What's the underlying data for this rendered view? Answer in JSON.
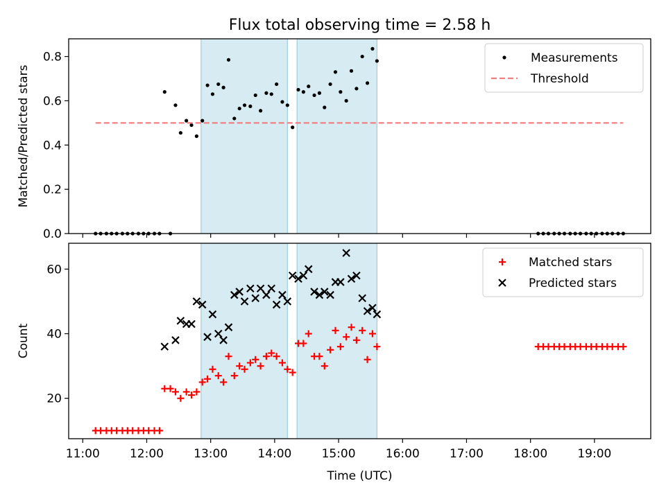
{
  "figure": {
    "title": "Flux total observing time = 2.58 h",
    "xlabel": "Time (UTC)",
    "x_tick_labels": [
      "11:00",
      "12:00",
      "13:00",
      "14:00",
      "15:00",
      "16:00",
      "17:00",
      "18:00",
      "19:00"
    ]
  },
  "chart_data": [
    {
      "type": "scatter",
      "title": "Flux total observing time = 2.58 h",
      "xlabel": "",
      "ylabel": "Matched/Predicted stars",
      "xlim": [
        10.78,
        19.88
      ],
      "ylim": [
        0.0,
        0.88
      ],
      "x_unit": "hours UTC",
      "y_ticks": [
        0.0,
        0.2,
        0.4,
        0.6,
        0.8
      ],
      "y_tick_labels": [
        "0.0",
        "0.2",
        "0.4",
        "0.6",
        "0.8"
      ],
      "shaded_intervals": [
        [
          12.85,
          14.2
        ],
        [
          14.35,
          15.6
        ]
      ],
      "shade_color": "#add8e6",
      "legend": {
        "position": "top-right",
        "entries": [
          "Measurements",
          "Threshold"
        ]
      },
      "series": [
        {
          "name": "Measurements",
          "marker": "dot",
          "color": "#000000",
          "points": [
            [
              11.2,
              0.0
            ],
            [
              11.28,
              0.0
            ],
            [
              11.37,
              0.0
            ],
            [
              11.45,
              0.0
            ],
            [
              11.53,
              0.0
            ],
            [
              11.62,
              0.0
            ],
            [
              11.7,
              0.0
            ],
            [
              11.78,
              0.0
            ],
            [
              11.87,
              0.0
            ],
            [
              11.95,
              0.0
            ],
            [
              12.03,
              0.0
            ],
            [
              12.12,
              0.0
            ],
            [
              12.2,
              0.0
            ],
            [
              12.37,
              0.0
            ],
            [
              12.28,
              0.64
            ],
            [
              12.45,
              0.58
            ],
            [
              12.53,
              0.455
            ],
            [
              12.62,
              0.51
            ],
            [
              12.7,
              0.49
            ],
            [
              12.78,
              0.44
            ],
            [
              12.87,
              0.51
            ],
            [
              12.95,
              0.67
            ],
            [
              13.03,
              0.63
            ],
            [
              13.12,
              0.675
            ],
            [
              13.2,
              0.66
            ],
            [
              13.28,
              0.785
            ],
            [
              13.37,
              0.52
            ],
            [
              13.45,
              0.565
            ],
            [
              13.53,
              0.58
            ],
            [
              13.62,
              0.575
            ],
            [
              13.7,
              0.625
            ],
            [
              13.78,
              0.555
            ],
            [
              13.87,
              0.635
            ],
            [
              13.95,
              0.63
            ],
            [
              14.03,
              0.675
            ],
            [
              14.12,
              0.595
            ],
            [
              14.2,
              0.58
            ],
            [
              14.28,
              0.48
            ],
            [
              14.37,
              0.65
            ],
            [
              14.45,
              0.64
            ],
            [
              14.53,
              0.665
            ],
            [
              14.62,
              0.625
            ],
            [
              14.7,
              0.635
            ],
            [
              14.78,
              0.57
            ],
            [
              14.87,
              0.675
            ],
            [
              14.95,
              0.73
            ],
            [
              15.03,
              0.64
            ],
            [
              15.12,
              0.6
            ],
            [
              15.2,
              0.735
            ],
            [
              15.28,
              0.655
            ],
            [
              15.37,
              0.8
            ],
            [
              15.45,
              0.68
            ],
            [
              15.53,
              0.835
            ],
            [
              15.6,
              0.78
            ],
            [
              18.12,
              0.0
            ],
            [
              18.2,
              0.0
            ],
            [
              18.28,
              0.0
            ],
            [
              18.37,
              0.0
            ],
            [
              18.45,
              0.0
            ],
            [
              18.53,
              0.0
            ],
            [
              18.62,
              0.0
            ],
            [
              18.7,
              0.0
            ],
            [
              18.78,
              0.0
            ],
            [
              18.87,
              0.0
            ],
            [
              18.95,
              0.0
            ],
            [
              19.03,
              0.0
            ],
            [
              19.12,
              0.0
            ],
            [
              19.2,
              0.0
            ],
            [
              19.28,
              0.0
            ],
            [
              19.37,
              0.0
            ],
            [
              19.45,
              0.0
            ]
          ]
        },
        {
          "name": "Threshold",
          "style": "dashed-line",
          "color": "#f08080",
          "points": [
            [
              11.2,
              0.5
            ],
            [
              19.45,
              0.5
            ]
          ]
        }
      ]
    },
    {
      "type": "scatter",
      "xlabel": "Time (UTC)",
      "ylabel": "Count",
      "xlim": [
        10.78,
        19.88
      ],
      "ylim": [
        7.5,
        68
      ],
      "x_unit": "hours UTC",
      "y_ticks": [
        20,
        40,
        60
      ],
      "y_tick_labels": [
        "20",
        "40",
        "60"
      ],
      "shaded_intervals": [
        [
          12.85,
          14.2
        ],
        [
          14.35,
          15.6
        ]
      ],
      "shade_color": "#add8e6",
      "legend": {
        "position": "top-right",
        "entries": [
          "Matched stars",
          "Predicted stars"
        ]
      },
      "series": [
        {
          "name": "Matched stars",
          "marker": "plus",
          "color": "#ff0000",
          "points": [
            [
              11.2,
              10
            ],
            [
              11.28,
              10
            ],
            [
              11.37,
              10
            ],
            [
              11.45,
              10
            ],
            [
              11.53,
              10
            ],
            [
              11.62,
              10
            ],
            [
              11.7,
              10
            ],
            [
              11.78,
              10
            ],
            [
              11.87,
              10
            ],
            [
              11.95,
              10
            ],
            [
              12.03,
              10
            ],
            [
              12.12,
              10
            ],
            [
              12.2,
              10
            ],
            [
              12.28,
              23
            ],
            [
              12.37,
              23
            ],
            [
              12.45,
              22
            ],
            [
              12.53,
              20
            ],
            [
              12.62,
              22
            ],
            [
              12.7,
              21
            ],
            [
              12.78,
              22
            ],
            [
              12.87,
              25
            ],
            [
              12.95,
              26
            ],
            [
              13.03,
              29
            ],
            [
              13.12,
              27
            ],
            [
              13.2,
              25
            ],
            [
              13.28,
              33
            ],
            [
              13.37,
              27
            ],
            [
              13.45,
              30
            ],
            [
              13.53,
              29
            ],
            [
              13.62,
              31
            ],
            [
              13.7,
              32
            ],
            [
              13.78,
              30
            ],
            [
              13.87,
              33
            ],
            [
              13.95,
              34
            ],
            [
              14.03,
              33
            ],
            [
              14.12,
              31
            ],
            [
              14.2,
              29
            ],
            [
              14.28,
              28
            ],
            [
              14.37,
              37
            ],
            [
              14.45,
              37
            ],
            [
              14.53,
              40
            ],
            [
              14.62,
              33
            ],
            [
              14.7,
              33
            ],
            [
              14.78,
              30
            ],
            [
              14.87,
              35
            ],
            [
              14.95,
              41
            ],
            [
              15.03,
              36
            ],
            [
              15.12,
              39
            ],
            [
              15.2,
              42
            ],
            [
              15.28,
              38
            ],
            [
              15.37,
              41
            ],
            [
              15.45,
              32
            ],
            [
              15.53,
              40
            ],
            [
              15.6,
              36
            ],
            [
              18.12,
              36
            ],
            [
              18.2,
              36
            ],
            [
              18.28,
              36
            ],
            [
              18.37,
              36
            ],
            [
              18.45,
              36
            ],
            [
              18.53,
              36
            ],
            [
              18.62,
              36
            ],
            [
              18.7,
              36
            ],
            [
              18.78,
              36
            ],
            [
              18.87,
              36
            ],
            [
              18.95,
              36
            ],
            [
              19.03,
              36
            ],
            [
              19.12,
              36
            ],
            [
              19.2,
              36
            ],
            [
              19.28,
              36
            ],
            [
              19.37,
              36
            ],
            [
              19.45,
              36
            ]
          ]
        },
        {
          "name": "Predicted stars",
          "marker": "x",
          "color": "#000000",
          "points": [
            [
              12.28,
              36
            ],
            [
              12.45,
              38
            ],
            [
              12.53,
              44
            ],
            [
              12.62,
              43
            ],
            [
              12.7,
              43
            ],
            [
              12.78,
              50
            ],
            [
              12.87,
              49
            ],
            [
              12.95,
              39
            ],
            [
              13.03,
              46
            ],
            [
              13.12,
              40
            ],
            [
              13.2,
              38
            ],
            [
              13.28,
              42
            ],
            [
              13.37,
              52
            ],
            [
              13.45,
              53
            ],
            [
              13.53,
              50
            ],
            [
              13.62,
              54
            ],
            [
              13.7,
              51
            ],
            [
              13.78,
              54
            ],
            [
              13.87,
              52
            ],
            [
              13.95,
              54
            ],
            [
              14.03,
              49
            ],
            [
              14.12,
              52
            ],
            [
              14.2,
              50
            ],
            [
              14.28,
              58
            ],
            [
              14.37,
              57
            ],
            [
              14.45,
              58
            ],
            [
              14.53,
              60
            ],
            [
              14.62,
              53
            ],
            [
              14.7,
              52
            ],
            [
              14.78,
              53
            ],
            [
              14.87,
              52
            ],
            [
              14.95,
              56
            ],
            [
              15.03,
              56
            ],
            [
              15.12,
              65
            ],
            [
              15.2,
              57
            ],
            [
              15.28,
              58
            ],
            [
              15.37,
              51
            ],
            [
              15.45,
              47
            ],
            [
              15.53,
              48
            ],
            [
              15.6,
              46
            ]
          ]
        }
      ]
    }
  ]
}
